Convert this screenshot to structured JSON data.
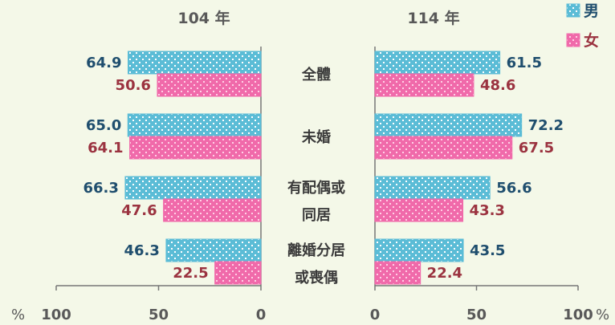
{
  "chart_data": {
    "type": "bar",
    "orientation": "horizontal",
    "layout": "back-to-back",
    "panels": [
      {
        "title": "104 年",
        "direction": "left",
        "series": [
          {
            "name": "男",
            "values": [
              64.9,
              65.0,
              66.3,
              46.3
            ]
          },
          {
            "name": "女",
            "values": [
              50.6,
              64.1,
              47.6,
              22.5
            ]
          }
        ]
      },
      {
        "title": "114 年",
        "direction": "right",
        "series": [
          {
            "name": "男",
            "values": [
              61.5,
              72.2,
              56.6,
              43.5
            ]
          },
          {
            "name": "女",
            "values": [
              48.6,
              67.5,
              43.3,
              22.4
            ]
          }
        ]
      }
    ],
    "categories": [
      [
        "全體"
      ],
      [
        "未婚"
      ],
      [
        "有配偶或",
        "同居"
      ],
      [
        "離婚分居",
        "或喪偶"
      ]
    ],
    "xlim": [
      0,
      100
    ],
    "ticks": [
      "0",
      "50",
      "100"
    ],
    "unit": "%",
    "legend": {
      "position": "top-right",
      "items": [
        "男",
        "女"
      ]
    },
    "colors": {
      "male": "#5bbcd6",
      "female": "#f06aaa",
      "male_label": "#1f4e6e",
      "female_label": "#9b3340"
    }
  }
}
